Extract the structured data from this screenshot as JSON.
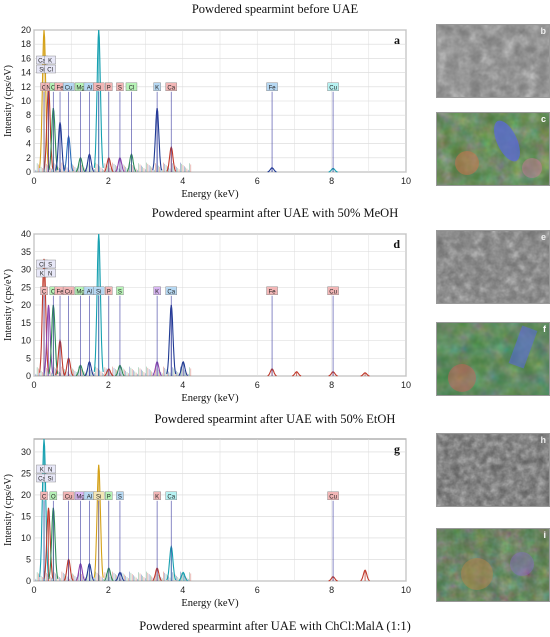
{
  "captions": {
    "top": "Powdered spearmint before UAE",
    "mid1": "Powdered spearmint after UAE with 50% MeOH",
    "mid2": "Powdered spearmint after UAE with 50% EtOH",
    "bottom": "Powdered spearmint after UAE with ChCl:MalA (1:1)"
  },
  "image_panels": [
    {
      "letter": "b",
      "kind": "SEM"
    },
    {
      "letter": "c",
      "kind": "EDS map"
    },
    {
      "letter": "e",
      "kind": "SEM"
    },
    {
      "letter": "f",
      "kind": "EDS map"
    },
    {
      "letter": "h",
      "kind": "SEM"
    },
    {
      "letter": "i",
      "kind": "EDS map"
    }
  ],
  "chart_data": [
    {
      "type": "line",
      "panel": "a",
      "xlabel": "Energy (keV)",
      "ylabel": "Intensity (cps/eV)",
      "xlim": [
        0,
        10
      ],
      "ylim": [
        0,
        20
      ],
      "yticks": [
        0,
        2,
        4,
        6,
        8,
        10,
        12,
        14,
        16,
        18,
        20
      ],
      "xticks": [
        0,
        2,
        4,
        6,
        8,
        10
      ],
      "grid": true,
      "element_labels": [
        {
          "text": "C",
          "x": 0.27,
          "color": "#f2b6b6"
        },
        {
          "text": "N",
          "x": 0.39,
          "color": "#f2b6b6"
        },
        {
          "text": "O",
          "x": 0.52,
          "color": "#b6f2b6"
        },
        {
          "text": "Fe",
          "x": 0.7,
          "color": "#f2b6b6"
        },
        {
          "text": "Cu",
          "x": 0.93,
          "color": "#b6d8f2"
        },
        {
          "text": "Mg",
          "x": 1.25,
          "color": "#b6f2b6"
        },
        {
          "text": "Al",
          "x": 1.49,
          "color": "#b6d8f2"
        },
        {
          "text": "Si",
          "x": 1.74,
          "color": "#f2b6b6"
        },
        {
          "text": "P",
          "x": 2.01,
          "color": "#f2b6b6"
        },
        {
          "text": "S",
          "x": 2.31,
          "color": "#f2b6b6"
        },
        {
          "text": "Cl",
          "x": 2.62,
          "color": "#b6f2b6"
        },
        {
          "text": "K",
          "x": 3.31,
          "color": "#b6d8f2"
        },
        {
          "text": "Ca",
          "x": 3.69,
          "color": "#f2b6b6"
        },
        {
          "text": "Fe",
          "x": 6.4,
          "color": "#b6d8f2"
        },
        {
          "text": "Cu",
          "x": 8.04,
          "color": "#b6f2f2"
        }
      ],
      "upper_labels": [
        "Ca",
        "K",
        "Si",
        "Cl"
      ],
      "peaks": [
        {
          "x": 0.27,
          "y": 20,
          "color": "#d4a017"
        },
        {
          "x": 0.39,
          "y": 12,
          "color": "#c0392b"
        },
        {
          "x": 0.52,
          "y": 9,
          "color": "#2e8b57"
        },
        {
          "x": 0.7,
          "y": 7,
          "color": "#1f3a93"
        },
        {
          "x": 0.93,
          "y": 5,
          "color": "#2c6fbb"
        },
        {
          "x": 1.25,
          "y": 2,
          "color": "#2e8b57"
        },
        {
          "x": 1.49,
          "y": 2.5,
          "color": "#1f3a93"
        },
        {
          "x": 1.74,
          "y": 20,
          "color": "#16a0b0"
        },
        {
          "x": 2.01,
          "y": 2,
          "color": "#c0392b"
        },
        {
          "x": 2.31,
          "y": 2,
          "color": "#8e44ad"
        },
        {
          "x": 2.62,
          "y": 2.5,
          "color": "#2e8b57"
        },
        {
          "x": 3.31,
          "y": 9,
          "color": "#1f3a93"
        },
        {
          "x": 3.69,
          "y": 3.5,
          "color": "#c0392b"
        },
        {
          "x": 6.4,
          "y": 0.6,
          "color": "#1f3a93"
        },
        {
          "x": 8.04,
          "y": 0.5,
          "color": "#16a0b0"
        }
      ]
    },
    {
      "type": "line",
      "panel": "d",
      "xlabel": "Energy (keV)",
      "ylabel": "Intensity (cps/eV)",
      "xlim": [
        0,
        10
      ],
      "ylim": [
        0,
        40
      ],
      "yticks": [
        0,
        5,
        10,
        15,
        20,
        25,
        30,
        35,
        40
      ],
      "xticks": [
        0,
        2,
        4,
        6,
        8,
        10
      ],
      "grid": true,
      "element_labels": [
        {
          "text": "C",
          "x": 0.27,
          "color": "#f2b6b6"
        },
        {
          "text": "O",
          "x": 0.52,
          "color": "#b6f2b6"
        },
        {
          "text": "Fe",
          "x": 0.7,
          "color": "#f2b6b6"
        },
        {
          "text": "Cu",
          "x": 0.93,
          "color": "#f2b6b6"
        },
        {
          "text": "Mg",
          "x": 1.25,
          "color": "#b6f2b6"
        },
        {
          "text": "Al",
          "x": 1.49,
          "color": "#b6d8f2"
        },
        {
          "text": "Si",
          "x": 1.74,
          "color": "#b6d8f2"
        },
        {
          "text": "P",
          "x": 2.01,
          "color": "#f2b6b6"
        },
        {
          "text": "S",
          "x": 2.31,
          "color": "#b6f2b6"
        },
        {
          "text": "K",
          "x": 3.31,
          "color": "#d8b6f2"
        },
        {
          "text": "Ca",
          "x": 3.69,
          "color": "#b6d8f2"
        },
        {
          "text": "Fe",
          "x": 6.4,
          "color": "#f2b6b6"
        },
        {
          "text": "Cu",
          "x": 8.04,
          "color": "#f2b6b6"
        }
      ],
      "upper_labels": [
        "Cl",
        "S",
        "K",
        "N"
      ],
      "peaks": [
        {
          "x": 0.27,
          "y": 33,
          "color": "#c0392b"
        },
        {
          "x": 0.39,
          "y": 20,
          "color": "#8e44ad"
        },
        {
          "x": 0.52,
          "y": 20,
          "color": "#2e8b57"
        },
        {
          "x": 0.7,
          "y": 10,
          "color": "#c0392b"
        },
        {
          "x": 0.93,
          "y": 5,
          "color": "#c0392b"
        },
        {
          "x": 1.25,
          "y": 3,
          "color": "#2e8b57"
        },
        {
          "x": 1.49,
          "y": 4,
          "color": "#1f3a93"
        },
        {
          "x": 1.74,
          "y": 40,
          "color": "#16a0b0"
        },
        {
          "x": 2.01,
          "y": 2,
          "color": "#c0392b"
        },
        {
          "x": 2.31,
          "y": 3,
          "color": "#2e8b57"
        },
        {
          "x": 3.31,
          "y": 4,
          "color": "#8e44ad"
        },
        {
          "x": 3.69,
          "y": 20,
          "color": "#1f3a93"
        },
        {
          "x": 4.01,
          "y": 4,
          "color": "#1f3a93"
        },
        {
          "x": 6.4,
          "y": 2,
          "color": "#c0392b"
        },
        {
          "x": 7.06,
          "y": 1.2,
          "color": "#c0392b"
        },
        {
          "x": 8.04,
          "y": 1.2,
          "color": "#c0392b"
        },
        {
          "x": 8.9,
          "y": 0.9,
          "color": "#c0392b"
        }
      ]
    },
    {
      "type": "line",
      "panel": "g",
      "xlabel": "Energy (keV)",
      "ylabel": "Intensity (cps/eV)",
      "xlim": [
        0,
        10
      ],
      "ylim": [
        0,
        33
      ],
      "yticks": [
        0,
        5,
        10,
        15,
        20,
        25,
        30
      ],
      "xticks": [
        0,
        2,
        4,
        6,
        8,
        10
      ],
      "grid": true,
      "element_labels": [
        {
          "text": "C",
          "x": 0.27,
          "color": "#f2b6b6"
        },
        {
          "text": "O",
          "x": 0.52,
          "color": "#b6f2b6"
        },
        {
          "text": "Cu",
          "x": 0.93,
          "color": "#f2b6b6"
        },
        {
          "text": "Mg",
          "x": 1.25,
          "color": "#d8b6f2"
        },
        {
          "text": "Al",
          "x": 1.49,
          "color": "#b6d8f2"
        },
        {
          "text": "Si",
          "x": 1.74,
          "color": "#f2e6b6"
        },
        {
          "text": "P",
          "x": 2.01,
          "color": "#b6f2b6"
        },
        {
          "text": "S",
          "x": 2.31,
          "color": "#b6d8f2"
        },
        {
          "text": "K",
          "x": 3.31,
          "color": "#f2b6b6"
        },
        {
          "text": "Ca",
          "x": 3.69,
          "color": "#b6f2f2"
        },
        {
          "text": "Cu",
          "x": 8.04,
          "color": "#f2b6b6"
        }
      ],
      "upper_labels": [
        "K",
        "N",
        "Ca",
        "Si"
      ],
      "peaks": [
        {
          "x": 0.27,
          "y": 33,
          "color": "#16a0b0"
        },
        {
          "x": 0.39,
          "y": 17,
          "color": "#c0392b"
        },
        {
          "x": 0.52,
          "y": 17,
          "color": "#2e8b57"
        },
        {
          "x": 0.93,
          "y": 5,
          "color": "#c0392b"
        },
        {
          "x": 1.25,
          "y": 4,
          "color": "#8e44ad"
        },
        {
          "x": 1.49,
          "y": 4,
          "color": "#1f3a93"
        },
        {
          "x": 1.74,
          "y": 27,
          "color": "#d4a017"
        },
        {
          "x": 2.01,
          "y": 3,
          "color": "#2e8b57"
        },
        {
          "x": 2.31,
          "y": 2,
          "color": "#1f3a93"
        },
        {
          "x": 3.31,
          "y": 3,
          "color": "#c0392b"
        },
        {
          "x": 3.69,
          "y": 8,
          "color": "#16a0b0"
        },
        {
          "x": 4.01,
          "y": 2,
          "color": "#16a0b0"
        },
        {
          "x": 8.04,
          "y": 1,
          "color": "#c0392b"
        },
        {
          "x": 8.9,
          "y": 2.5,
          "color": "#c0392b"
        }
      ]
    }
  ]
}
